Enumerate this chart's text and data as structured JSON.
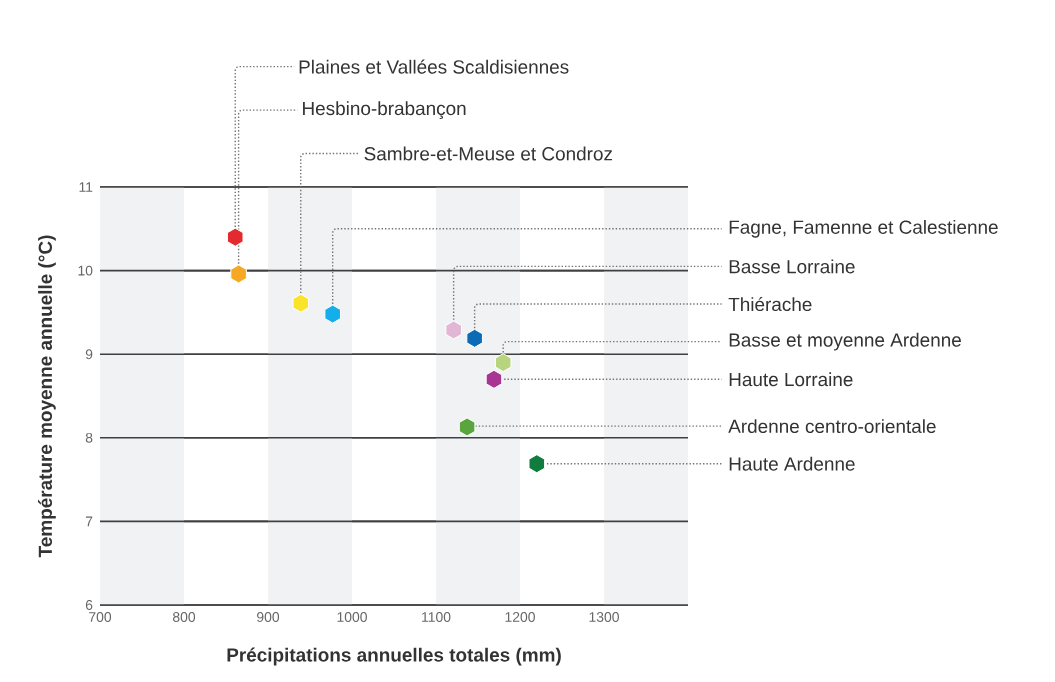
{
  "chart_data": {
    "type": "scatter",
    "xlabel": "Précipitations annuelles totales (mm)",
    "ylabel": "Température moyenne annuelle (°C)",
    "x": [
      861,
      865,
      939,
      977,
      1121,
      1146,
      1180,
      1169,
      1137,
      1220
    ],
    "values": [
      10.4,
      9.96,
      9.61,
      9.48,
      9.29,
      9.19,
      8.9,
      8.7,
      8.13,
      7.69
    ],
    "colors": [
      "#e32b2f",
      "#f7a823",
      "#f9e42a",
      "#14aeea",
      "#e2b7d6",
      "#0d6bb5",
      "#b8d47f",
      "#a93593",
      "#5aa53e",
      "#107c3e"
    ],
    "annotations": [
      {
        "text": "Plaines et Vallées Scaldisiennes",
        "x": 861,
        "y": 10.4
      },
      {
        "text": "Hesbino-brabançon",
        "x": 865,
        "y": 9.96
      },
      {
        "text": "Sambre-et-Meuse et Condroz",
        "x": 939,
        "y": 9.61
      },
      {
        "text": "Fagne, Famenne et Calestienne",
        "x": 977,
        "y": 9.48
      },
      {
        "text": "Basse Lorraine",
        "x": 1121,
        "y": 9.29
      },
      {
        "text": "Thiérache",
        "x": 1146,
        "y": 9.19
      },
      {
        "text": "Basse et moyenne Ardenne",
        "x": 1180,
        "y": 8.9
      },
      {
        "text": "Haute Lorraine",
        "x": 1169,
        "y": 8.7
      },
      {
        "text": "Ardenne centro-orientale",
        "x": 1137,
        "y": 8.13
      },
      {
        "text": "Haute Ardenne",
        "x": 1220,
        "y": 7.69
      }
    ],
    "xlim": [
      700,
      1400
    ],
    "ylim": [
      6,
      11
    ],
    "xticks": [
      700,
      800,
      900,
      1000,
      1100,
      1200,
      1300
    ],
    "yticks": [
      6,
      7,
      8,
      9,
      10,
      11
    ],
    "grid": "y",
    "bands": [
      {
        "axis": "x",
        "from": 700,
        "to": 800,
        "color": "#f1f2f4"
      },
      {
        "axis": "x",
        "from": 900,
        "to": 1000,
        "color": "#f1f2f4"
      },
      {
        "axis": "x",
        "from": 1100,
        "to": 1200,
        "color": "#f1f2f4"
      },
      {
        "axis": "x",
        "from": 1300,
        "to": 1400,
        "color": "#f1f2f4"
      }
    ]
  }
}
